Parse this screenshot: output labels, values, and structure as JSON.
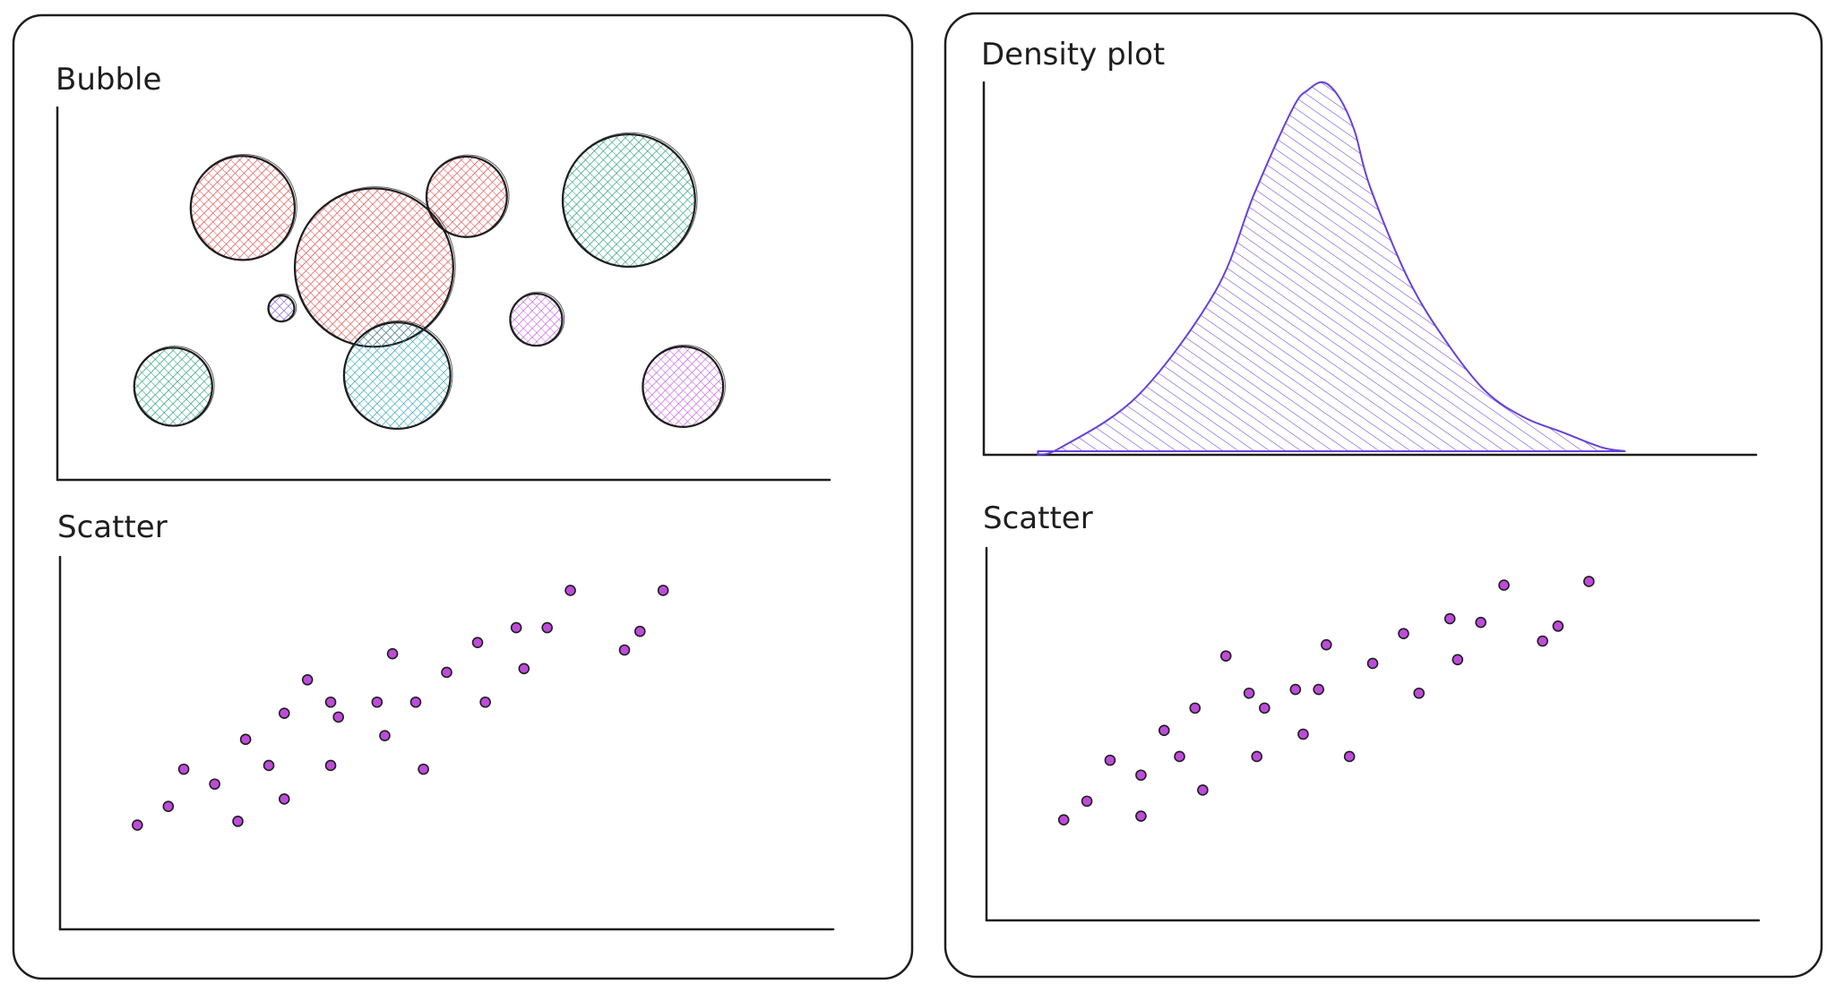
{
  "colors": {
    "ink": "#1e1e1e",
    "red": "#e03131",
    "green": "#099268",
    "teal": "#1098ad",
    "violet": "#be4bdb",
    "indigo": "#6741d9",
    "point_fill": "#be4bdb"
  },
  "panels": [
    {
      "name": "left-panel"
    },
    {
      "name": "right-panel"
    }
  ],
  "chart_data": [
    {
      "type": "bubble",
      "title": "Bubble",
      "grid": false,
      "xlim": [
        0,
        100
      ],
      "ylim": [
        0,
        100
      ],
      "points": [
        {
          "x": 24,
          "y": 73,
          "size": 44,
          "color": "red"
        },
        {
          "x": 41,
          "y": 57,
          "size": 67,
          "color": "red"
        },
        {
          "x": 53,
          "y": 76,
          "size": 34,
          "color": "red"
        },
        {
          "x": 74,
          "y": 75,
          "size": 56,
          "color": "green"
        },
        {
          "x": 29,
          "y": 46,
          "size": 11,
          "color": "indigo"
        },
        {
          "x": 62,
          "y": 43,
          "size": 22,
          "color": "violet"
        },
        {
          "x": 15,
          "y": 25,
          "size": 33,
          "color": "green"
        },
        {
          "x": 44,
          "y": 28,
          "size": 45,
          "color": "teal"
        },
        {
          "x": 81,
          "y": 25,
          "size": 34,
          "color": "violet"
        }
      ]
    },
    {
      "type": "scatter",
      "title": "Scatter",
      "grid": false,
      "xlim": [
        0,
        100
      ],
      "ylim": [
        0,
        100
      ],
      "points": [
        [
          10,
          28
        ],
        [
          14,
          33
        ],
        [
          16,
          43
        ],
        [
          20,
          39
        ],
        [
          23,
          29
        ],
        [
          24,
          51
        ],
        [
          27,
          44
        ],
        [
          29,
          35
        ],
        [
          29,
          58
        ],
        [
          32,
          67
        ],
        [
          35,
          61
        ],
        [
          35,
          44
        ],
        [
          36,
          57
        ],
        [
          41,
          61
        ],
        [
          42,
          52
        ],
        [
          43,
          74
        ],
        [
          46,
          61
        ],
        [
          47,
          43
        ],
        [
          50,
          69
        ],
        [
          54,
          77
        ],
        [
          55,
          61
        ],
        [
          59,
          81
        ],
        [
          60,
          70
        ],
        [
          63,
          81
        ],
        [
          66,
          91
        ],
        [
          73,
          75
        ],
        [
          75,
          80
        ],
        [
          78,
          91
        ]
      ]
    },
    {
      "type": "area",
      "title": "Density plot",
      "grid": false,
      "xlim": [
        0,
        100
      ],
      "ylim": [
        0,
        1
      ],
      "x": [
        7,
        10,
        20,
        30,
        35,
        40,
        42,
        44,
        46,
        48,
        50,
        55,
        60,
        65,
        70,
        75,
        80,
        83
      ],
      "y": [
        0.0,
        0.02,
        0.16,
        0.44,
        0.7,
        0.93,
        0.98,
        1.0,
        0.96,
        0.87,
        0.72,
        0.47,
        0.3,
        0.17,
        0.1,
        0.06,
        0.02,
        0.01
      ],
      "color": "indigo"
    },
    {
      "type": "scatter",
      "title": "Scatter",
      "grid": false,
      "xlim": [
        0,
        100
      ],
      "ylim": [
        0,
        100
      ],
      "points": [
        [
          10,
          27
        ],
        [
          13,
          32
        ],
        [
          16,
          43
        ],
        [
          20,
          28
        ],
        [
          20,
          39
        ],
        [
          23,
          51
        ],
        [
          25,
          44
        ],
        [
          27,
          57
        ],
        [
          28,
          35
        ],
        [
          31,
          71
        ],
        [
          34,
          61
        ],
        [
          35,
          44
        ],
        [
          36,
          57
        ],
        [
          40,
          62
        ],
        [
          41,
          50
        ],
        [
          43,
          62
        ],
        [
          44,
          74
        ],
        [
          47,
          44
        ],
        [
          50,
          69
        ],
        [
          54,
          77
        ],
        [
          56,
          61
        ],
        [
          60,
          81
        ],
        [
          61,
          70
        ],
        [
          64,
          80
        ],
        [
          67,
          90
        ],
        [
          72,
          75
        ],
        [
          74,
          79
        ],
        [
          78,
          91
        ]
      ]
    }
  ]
}
